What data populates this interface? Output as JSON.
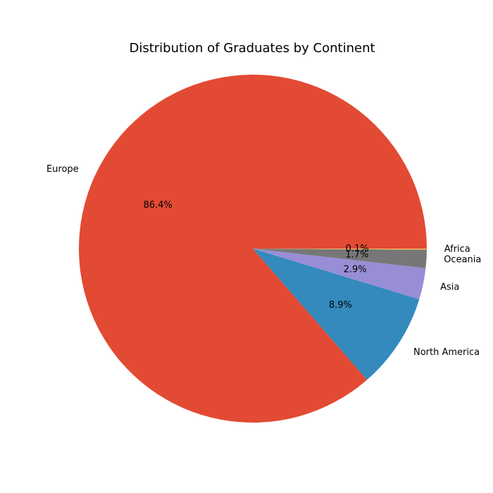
{
  "chart_data": {
    "type": "pie",
    "title": "Distribution of Graduates by Continent",
    "slices": [
      {
        "label": "Europe",
        "value": 86.4,
        "pct_label": "86.4%",
        "color": "#E24A33"
      },
      {
        "label": "North America",
        "value": 8.9,
        "pct_label": "8.9%",
        "color": "#348ABD"
      },
      {
        "label": "Asia",
        "value": 2.9,
        "pct_label": "2.9%",
        "color": "#988ED5"
      },
      {
        "label": "Oceania",
        "value": 1.7,
        "pct_label": "1.7%",
        "color": "#777777"
      },
      {
        "label": "Africa",
        "value": 0.1,
        "pct_label": "0.1%",
        "color": "#FBC15E"
      }
    ],
    "start_angle": 0,
    "direction": "counterclockwise"
  }
}
